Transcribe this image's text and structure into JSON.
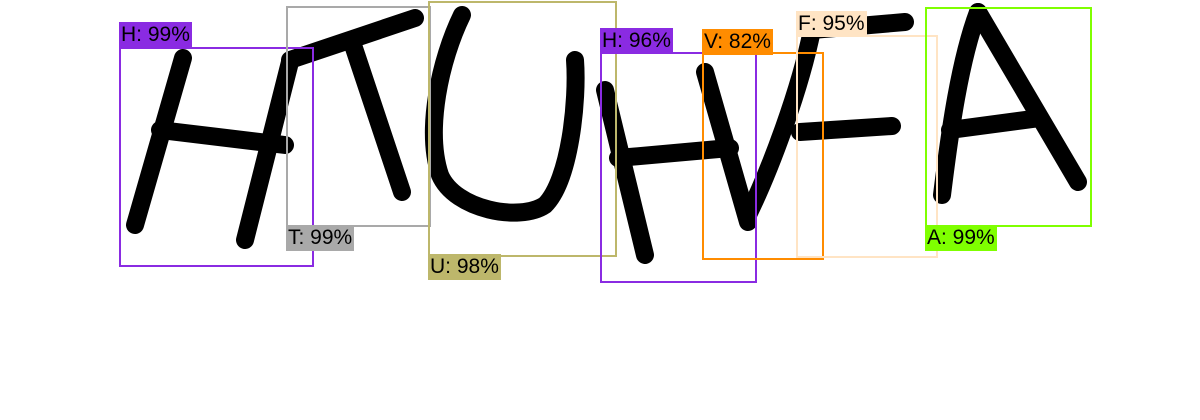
{
  "detections": [
    {
      "label": "H: 99%",
      "char": "H",
      "color": "#8a2be2"
    },
    {
      "label": "T: 99%",
      "char": "T",
      "color": "#a9a9a9"
    },
    {
      "label": "U: 98%",
      "char": "U",
      "color": "#bdb76b"
    },
    {
      "label": "H: 96%",
      "char": "H",
      "color": "#8a2be2"
    },
    {
      "label": "V: 82%",
      "char": "V",
      "color": "#ff8c00"
    },
    {
      "label": "F: 95%",
      "char": "F",
      "color": "#ffe4c4"
    },
    {
      "label": "A: 99%",
      "char": "A",
      "color": "#7fff00"
    }
  ]
}
